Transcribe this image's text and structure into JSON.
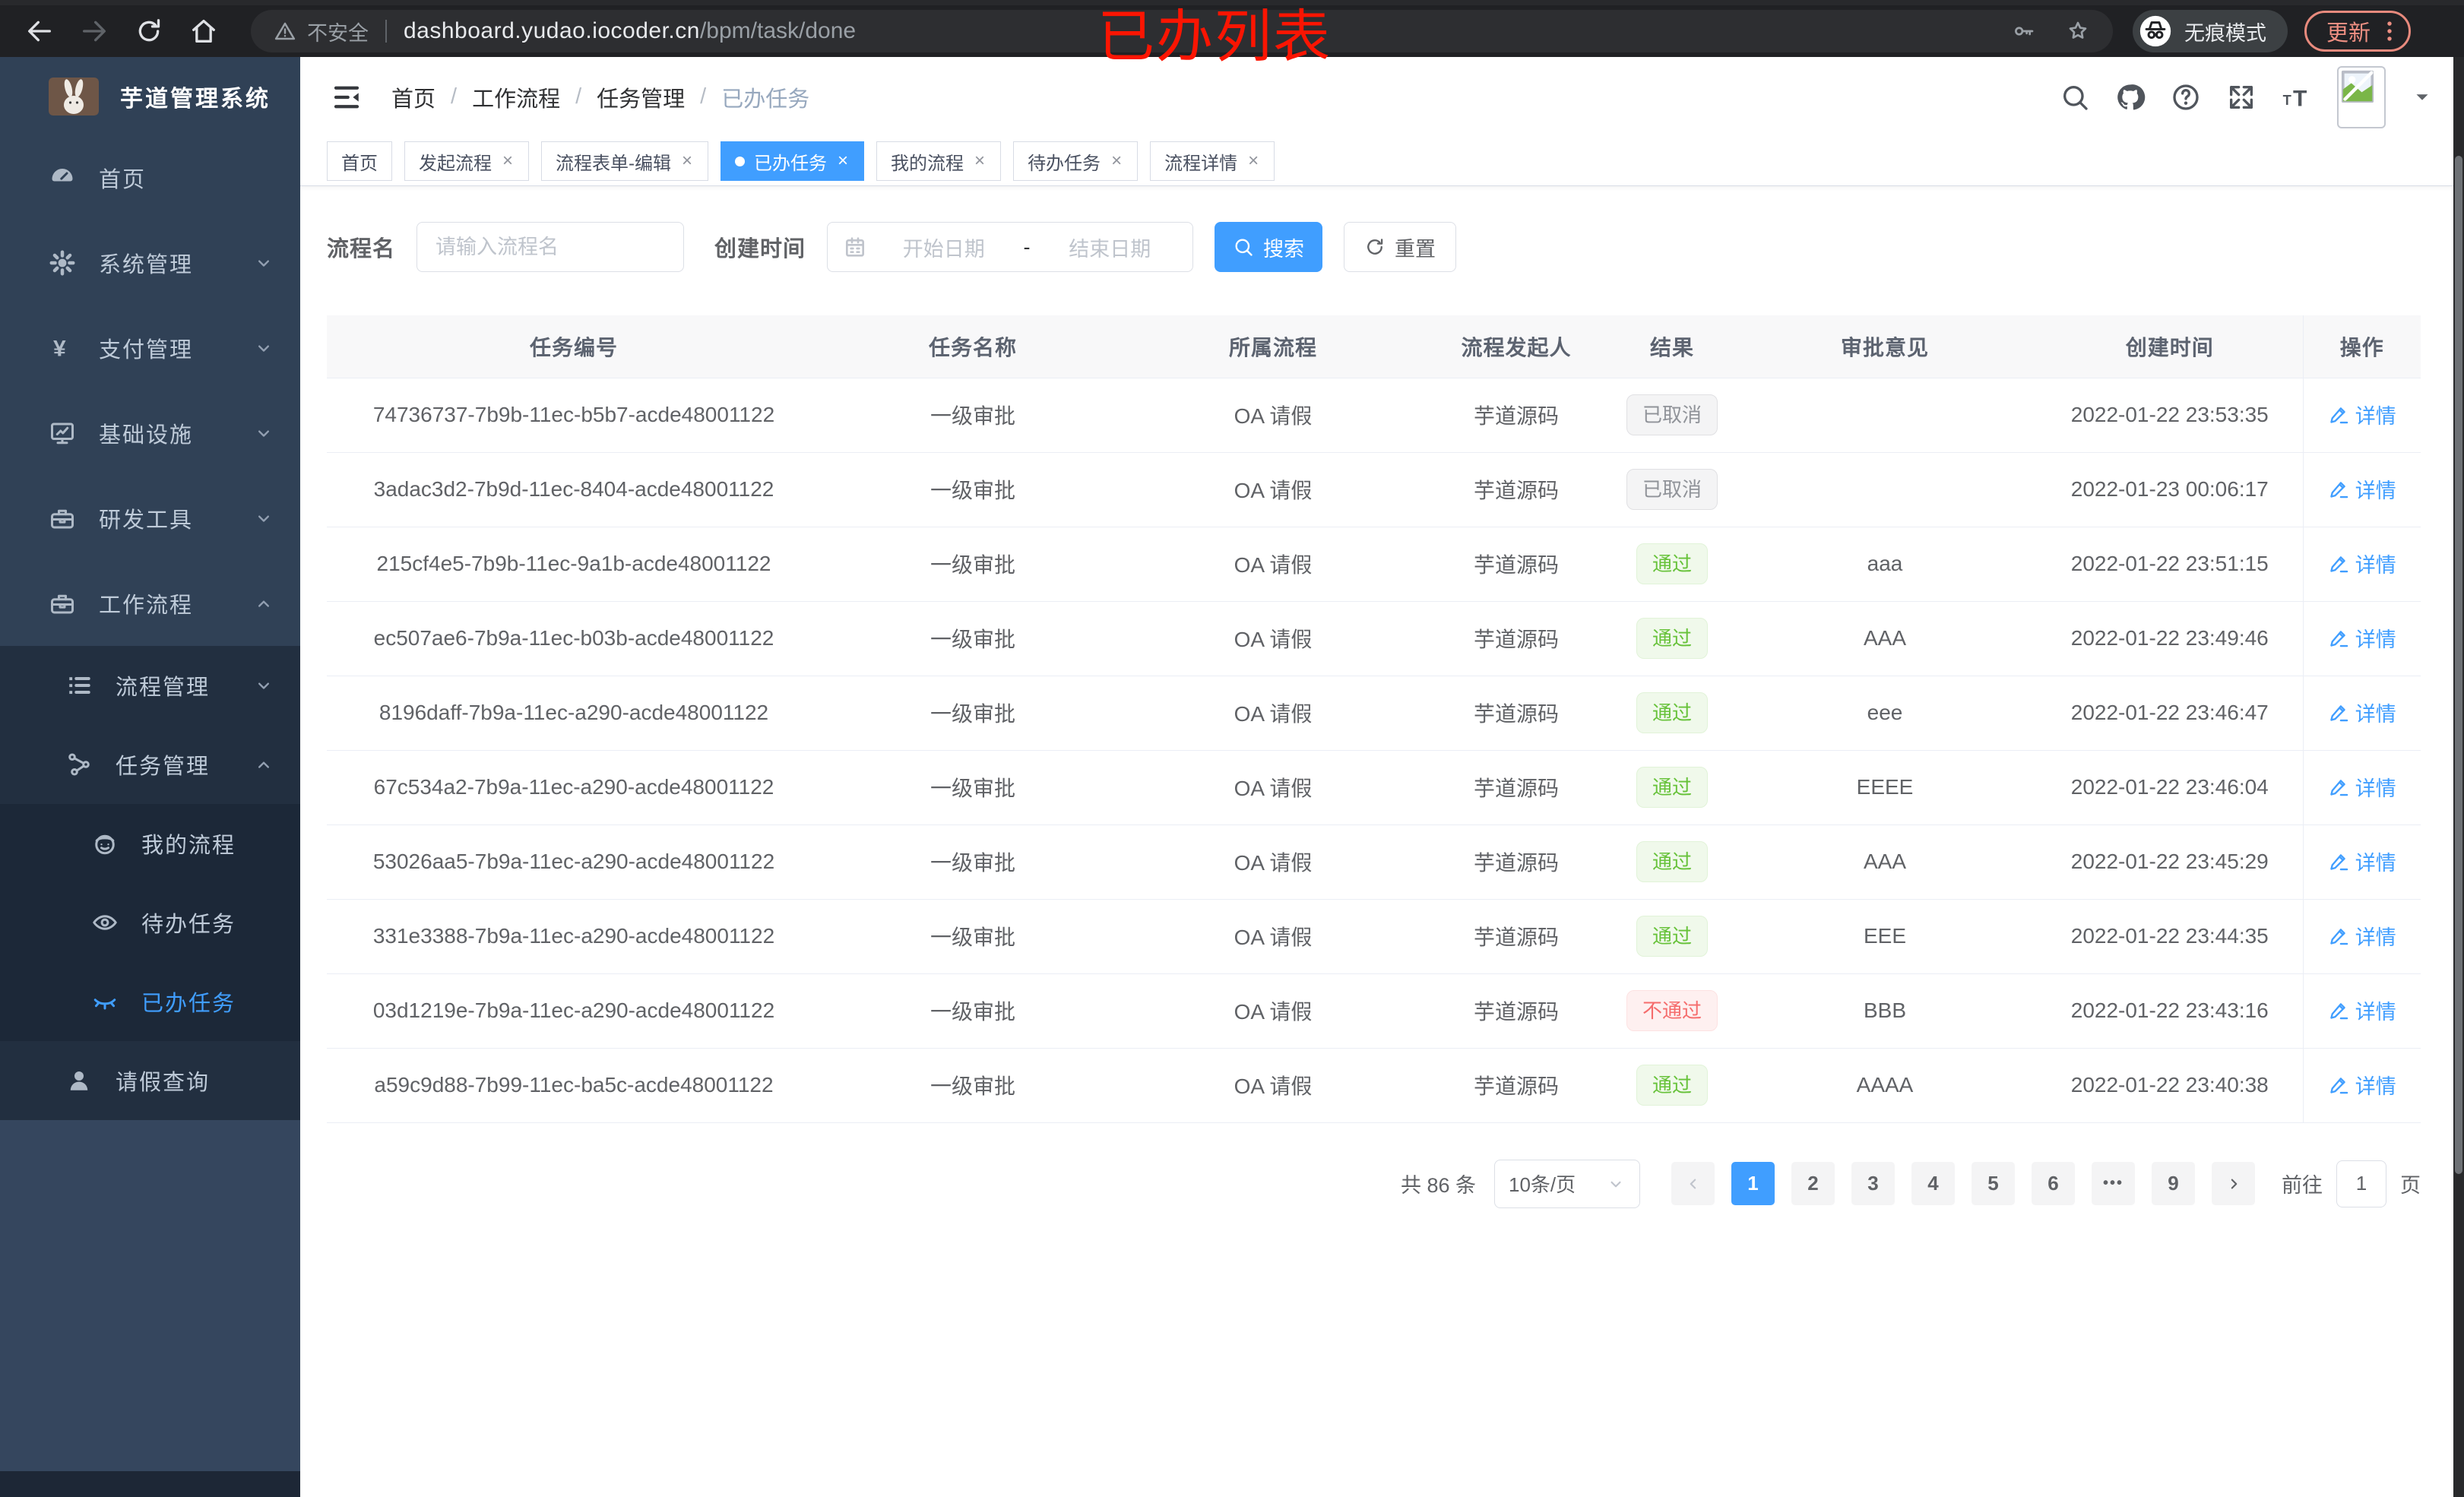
{
  "browser": {
    "annotation": "已办列表",
    "security_label": "不安全",
    "url_host": "dashboard.yudao.iocoder.cn",
    "url_path": "/bpm/task/done",
    "incognito_label": "无痕模式",
    "update_label": "更新"
  },
  "sidebar": {
    "title": "芋道管理系统",
    "items": [
      {
        "name": "home",
        "label": "首页",
        "icon": "gauge-icon",
        "level": 1,
        "chevron": "",
        "active": false
      },
      {
        "name": "system-mgmt",
        "label": "系统管理",
        "icon": "gear-icon",
        "level": 1,
        "chevron": "down",
        "active": false
      },
      {
        "name": "payment-mgmt",
        "label": "支付管理",
        "icon": "yen-icon",
        "level": 1,
        "chevron": "down",
        "active": false
      },
      {
        "name": "infrastructure",
        "label": "基础设施",
        "icon": "monitor-icon",
        "level": 1,
        "chevron": "down",
        "active": false
      },
      {
        "name": "dev-tools",
        "label": "研发工具",
        "icon": "toolbox-icon",
        "level": 1,
        "chevron": "down",
        "active": false
      },
      {
        "name": "workflow",
        "label": "工作流程",
        "icon": "briefcase-icon",
        "level": 1,
        "chevron": "up",
        "active": false
      },
      {
        "name": "process-mgmt",
        "label": "流程管理",
        "icon": "list-tree-icon",
        "level": 2,
        "chevron": "down",
        "active": false
      },
      {
        "name": "task-mgmt",
        "label": "任务管理",
        "icon": "flow-icon",
        "level": 2,
        "chevron": "up",
        "active": false
      },
      {
        "name": "my-process",
        "label": "我的流程",
        "icon": "robot-icon",
        "level": 3,
        "chevron": "",
        "active": false
      },
      {
        "name": "todo-tasks",
        "label": "待办任务",
        "icon": "eye-icon",
        "level": 3,
        "chevron": "",
        "active": false
      },
      {
        "name": "done-tasks",
        "label": "已办任务",
        "icon": "eye-closed-icon",
        "level": 3,
        "chevron": "",
        "active": true
      },
      {
        "name": "leave-query",
        "label": "请假查询",
        "icon": "user-icon",
        "level": 2,
        "chevron": "",
        "active": false
      }
    ]
  },
  "header": {
    "breadcrumb": [
      "首页",
      "工作流程",
      "任务管理",
      "已办任务"
    ],
    "action_icons": [
      "search-icon",
      "github-icon",
      "question-icon",
      "fullscreen-icon",
      "font-size-icon"
    ]
  },
  "tabs": [
    {
      "name": "home",
      "label": "首页",
      "closable": false,
      "active": false
    },
    {
      "name": "start-process",
      "label": "发起流程",
      "closable": true,
      "active": false
    },
    {
      "name": "form-edit",
      "label": "流程表单-编辑",
      "closable": true,
      "active": false
    },
    {
      "name": "done-tasks",
      "label": "已办任务",
      "closable": true,
      "active": true
    },
    {
      "name": "my-process",
      "label": "我的流程",
      "closable": true,
      "active": false
    },
    {
      "name": "todo-tasks",
      "label": "待办任务",
      "closable": true,
      "active": false
    },
    {
      "name": "process-detail",
      "label": "流程详情",
      "closable": true,
      "active": false
    }
  ],
  "filters": {
    "name_label": "流程名",
    "name_placeholder": "请输入流程名",
    "name_value": "",
    "time_label": "创建时间",
    "start_placeholder": "开始日期",
    "range_separator": "-",
    "end_placeholder": "结束日期",
    "search_label": "搜索",
    "reset_label": "重置"
  },
  "table": {
    "columns": [
      "任务编号",
      "任务名称",
      "所属流程",
      "流程发起人",
      "结果",
      "审批意见",
      "创建时间",
      "操作"
    ],
    "action_label": "详情",
    "rows": [
      {
        "id": "74736737-7b9b-11ec-b5b7-acde48001122",
        "task_name": "一级审批",
        "process": "OA 请假",
        "starter": "芋道源码",
        "result": "已取消",
        "result_type": "cancel",
        "comment": "",
        "created": "2022-01-22 23:53:35"
      },
      {
        "id": "3adac3d2-7b9d-11ec-8404-acde48001122",
        "task_name": "一级审批",
        "process": "OA 请假",
        "starter": "芋道源码",
        "result": "已取消",
        "result_type": "cancel",
        "comment": "",
        "created": "2022-01-23 00:06:17"
      },
      {
        "id": "215cf4e5-7b9b-11ec-9a1b-acde48001122",
        "task_name": "一级审批",
        "process": "OA 请假",
        "starter": "芋道源码",
        "result": "通过",
        "result_type": "pass",
        "comment": "aaa",
        "created": "2022-01-22 23:51:15"
      },
      {
        "id": "ec507ae6-7b9a-11ec-b03b-acde48001122",
        "task_name": "一级审批",
        "process": "OA 请假",
        "starter": "芋道源码",
        "result": "通过",
        "result_type": "pass",
        "comment": "AAA",
        "created": "2022-01-22 23:49:46"
      },
      {
        "id": "8196daff-7b9a-11ec-a290-acde48001122",
        "task_name": "一级审批",
        "process": "OA 请假",
        "starter": "芋道源码",
        "result": "通过",
        "result_type": "pass",
        "comment": "eee",
        "created": "2022-01-22 23:46:47"
      },
      {
        "id": "67c534a2-7b9a-11ec-a290-acde48001122",
        "task_name": "一级审批",
        "process": "OA 请假",
        "starter": "芋道源码",
        "result": "通过",
        "result_type": "pass",
        "comment": "EEEE",
        "created": "2022-01-22 23:46:04"
      },
      {
        "id": "53026aa5-7b9a-11ec-a290-acde48001122",
        "task_name": "一级审批",
        "process": "OA 请假",
        "starter": "芋道源码",
        "result": "通过",
        "result_type": "pass",
        "comment": "AAA",
        "created": "2022-01-22 23:45:29"
      },
      {
        "id": "331e3388-7b9a-11ec-a290-acde48001122",
        "task_name": "一级审批",
        "process": "OA 请假",
        "starter": "芋道源码",
        "result": "通过",
        "result_type": "pass",
        "comment": "EEE",
        "created": "2022-01-22 23:44:35"
      },
      {
        "id": "03d1219e-7b9a-11ec-a290-acde48001122",
        "task_name": "一级审批",
        "process": "OA 请假",
        "starter": "芋道源码",
        "result": "不通过",
        "result_type": "fail",
        "comment": "BBB",
        "created": "2022-01-22 23:43:16"
      },
      {
        "id": "a59c9d88-7b99-11ec-ba5c-acde48001122",
        "task_name": "一级审批",
        "process": "OA 请假",
        "starter": "芋道源码",
        "result": "通过",
        "result_type": "pass",
        "comment": "AAAA",
        "created": "2022-01-22 23:40:38"
      }
    ]
  },
  "pagination": {
    "total": "共 86 条",
    "page_size": "10条/页",
    "pages": [
      "1",
      "2",
      "3",
      "4",
      "5",
      "6",
      "•••",
      "9"
    ],
    "active_page": "1",
    "goto_label": "前往",
    "goto_value": "1",
    "goto_unit": "页"
  },
  "colors": {
    "accent": "#409eff",
    "success": "#67c23a",
    "danger": "#f56c6c",
    "info": "#909399",
    "sidebar_bg": "#304156",
    "annotation_red": "#fb1502",
    "update_coral": "#ee8f82"
  }
}
